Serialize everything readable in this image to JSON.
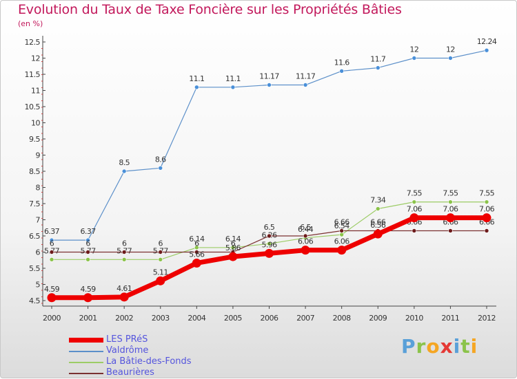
{
  "title": "Evolution du Taux de Taxe Foncière sur les Propriétés Bâties",
  "subtitle": "(en %)",
  "logo": {
    "letters": [
      "P",
      "r",
      "o",
      "x",
      "i",
      "t",
      "i"
    ],
    "colors": [
      "#5aa0d8",
      "#8bc34a",
      "#f5a623",
      "#e53935",
      "#5aa0d8",
      "#8bc34a",
      "#f5a623"
    ]
  },
  "chart_data": {
    "type": "line",
    "title": "Evolution du Taux de Taxe Foncière sur les Propriétés Bâties",
    "ylabel": "(en %)",
    "x": [
      "2000",
      "2001",
      "2002",
      "2003",
      "2004",
      "2005",
      "2006",
      "2007",
      "2008",
      "2009",
      "2010",
      "2011",
      "2012"
    ],
    "ylim": [
      4.5,
      12.5
    ],
    "yticks": [
      "4.5",
      "5",
      "5.5",
      "6",
      "6.5",
      "7",
      "7.5",
      "8",
      "8.5",
      "9",
      "9.5",
      "10",
      "10.5",
      "11",
      "11.5",
      "12",
      "12.5"
    ],
    "grid": false,
    "legend_position": "bottom-left",
    "series": [
      {
        "name": "Valdrôme",
        "color": "#5b8fc9",
        "point_color": "#4a90d9",
        "values": [
          6.37,
          6.37,
          8.5,
          8.6,
          11.1,
          11.1,
          11.17,
          11.17,
          11.6,
          11.7,
          12,
          12,
          12.24
        ],
        "labels": [
          "6.37",
          "6.37",
          "8.5",
          "8.6",
          "11.1",
          "11.1",
          "11.17",
          "11.17",
          "11.6",
          "11.7",
          "12",
          "12",
          "12.24"
        ]
      },
      {
        "name": "La Bâtie-des-Fonds",
        "color": "#9ccc65",
        "point_color": "#8bc34a",
        "values": [
          5.77,
          5.77,
          5.77,
          5.77,
          6.14,
          6.14,
          6.26,
          6.44,
          6.54,
          7.34,
          7.55,
          7.55,
          7.55
        ],
        "labels": [
          "5.77",
          "5.77",
          "5.77",
          "5.77",
          "6.14",
          "6.14",
          "6.26",
          "6.44",
          "6.54",
          "7.34",
          "7.55",
          "7.55",
          "7.55"
        ]
      },
      {
        "name": "Beaurières",
        "color": "#7a3030",
        "point_color": "#6d1b1b",
        "values": [
          6,
          6,
          6,
          6,
          6,
          6,
          6.5,
          6.5,
          6.66,
          6.66,
          6.66,
          6.66,
          6.66
        ],
        "labels": [
          "6",
          "6",
          "6",
          "6",
          "6",
          "6",
          "6.5",
          "6.5",
          "6.66",
          "6.66",
          "6.66",
          "6.66",
          "6.66"
        ]
      },
      {
        "name": "LES PRéS",
        "color": "#ee0000",
        "point_color": "#ee0000",
        "values": [
          4.59,
          4.59,
          4.61,
          5.11,
          5.66,
          5.86,
          5.96,
          6.06,
          6.06,
          6.56,
          7.06,
          7.06,
          7.06
        ],
        "labels": [
          "4.59",
          "4.59",
          "4.61",
          "5.11",
          "5.66",
          "5.86",
          "5.96",
          "6.06",
          "6.06",
          "6.56",
          "7.06",
          "7.06",
          "7.06"
        ]
      }
    ],
    "legend": [
      {
        "name": "LES PRéS",
        "color": "#ee0000"
      },
      {
        "name": "Valdrôme",
        "color": "#5b8fc9"
      },
      {
        "name": "La Bâtie-des-Fonds",
        "color": "#9ccc65"
      },
      {
        "name": "Beaurières",
        "color": "#7a3030"
      }
    ]
  }
}
